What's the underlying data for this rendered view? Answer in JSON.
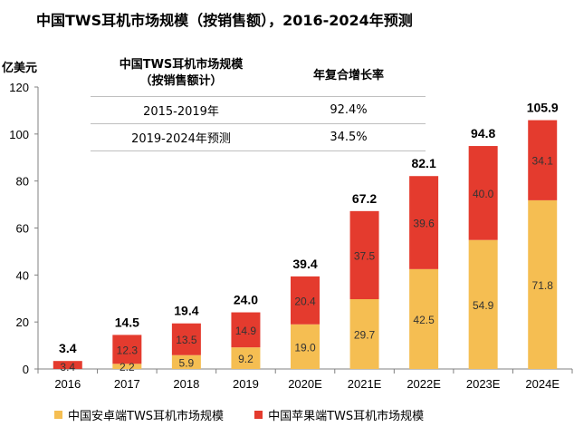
{
  "chart_data": {
    "type": "bar",
    "title": "中国TWS耳机市场规模（按销售额），2016-2024年预测",
    "ylabel": "亿美元",
    "categories": [
      "2016",
      "2017",
      "2018",
      "2019",
      "2020E",
      "2021E",
      "2022E",
      "2023E",
      "2024E"
    ],
    "series": [
      {
        "name": "中国安卓端TWS耳机市场规模",
        "values": [
          0,
          2.2,
          5.9,
          9.2,
          19.0,
          29.7,
          42.5,
          54.9,
          71.8
        ],
        "labels": [
          "",
          "2.2",
          "5.9",
          "9.2",
          "19.0",
          "29.7",
          "42.5",
          "54.9",
          "71.8"
        ],
        "color": "#F5BE52"
      },
      {
        "name": "中国苹果端TWS耳机市场规模",
        "values": [
          3.4,
          12.3,
          13.5,
          14.9,
          20.4,
          37.5,
          39.6,
          40.0,
          34.1
        ],
        "labels": [
          "3.4",
          "12.3",
          "13.5",
          "14.9",
          "20.4",
          "37.5",
          "39.6",
          "40.0",
          "34.1"
        ],
        "color": "#E43B2E"
      }
    ],
    "totals": [
      "3.4",
      "14.5",
      "19.4",
      "24.0",
      "39.4",
      "67.2",
      "82.1",
      "94.8",
      "105.9"
    ],
    "ylim": [
      0,
      120
    ],
    "yticks": [
      "0",
      "20",
      "40",
      "60",
      "80",
      "100",
      "120"
    ],
    "legend_position": "bottom"
  },
  "cagr_table": {
    "header": [
      "中国TWS耳机市场规模\n（按销售额计）",
      "年复合增长率"
    ],
    "rows": [
      [
        "2015-2019年",
        "92.4%"
      ],
      [
        "2019-2024年预测",
        "34.5%"
      ]
    ]
  }
}
